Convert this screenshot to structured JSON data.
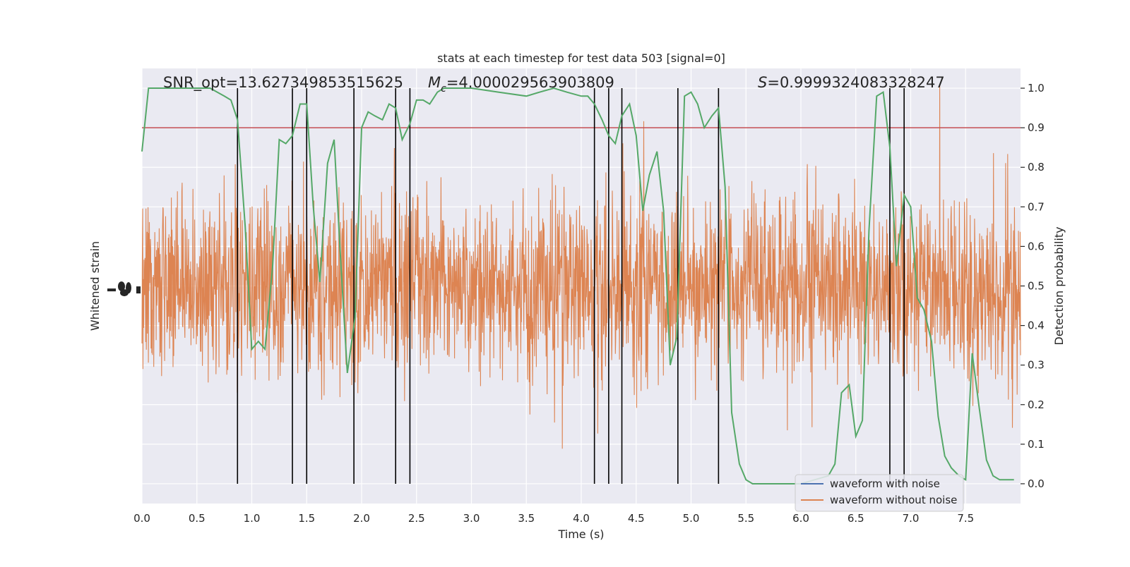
{
  "chart_data": {
    "type": "line",
    "title": "stats at each timestep for test data 503 [signal=0]",
    "xlabel": "Time (s)",
    "ylabel_left": "Whitened strain",
    "ylabel_right": "Detection probability",
    "xlim": [
      0.0,
      8.0
    ],
    "ylim_right": [
      -0.05,
      1.05
    ],
    "x_ticks": [
      "0.0",
      "0.5",
      "1.0",
      "1.5",
      "2.0",
      "2.5",
      "3.0",
      "3.5",
      "4.0",
      "4.5",
      "5.0",
      "5.5",
      "6.0",
      "6.5",
      "7.0",
      "7.5"
    ],
    "y_ticks_right": [
      "0.0",
      "0.1",
      "0.2",
      "0.3",
      "0.4",
      "0.5",
      "0.6",
      "0.7",
      "0.8",
      "0.9",
      "1.0"
    ],
    "annotations": {
      "snr": "SNR_opt=13.627349853515625",
      "mc_symbol": "M",
      "mc_sub": "c",
      "mc_value": "=4.000029563903809",
      "s_symbol": "S",
      "s_value": "=0.9999324083328247"
    },
    "threshold": 0.9,
    "vertical_lines": [
      0.87,
      1.37,
      1.5,
      1.93,
      2.31,
      2.44,
      4.12,
      4.25,
      4.37,
      4.88,
      5.25,
      6.81,
      6.94
    ],
    "series": [
      {
        "name": "waveform with noise",
        "color": "#4c72b0",
        "kind": "noise"
      },
      {
        "name": "waveform without noise",
        "color": "#dd8452",
        "kind": "noise"
      },
      {
        "color": "#55a868",
        "kind": "probability",
        "x": [
          0.0,
          0.06,
          0.12,
          0.25,
          0.37,
          0.5,
          0.62,
          0.75,
          0.81,
          0.87,
          0.94,
          1.0,
          1.06,
          1.12,
          1.19,
          1.25,
          1.31,
          1.37,
          1.44,
          1.5,
          1.56,
          1.62,
          1.69,
          1.75,
          1.81,
          1.87,
          1.94,
          2.0,
          2.06,
          2.12,
          2.19,
          2.25,
          2.31,
          2.37,
          2.44,
          2.5,
          2.56,
          2.62,
          2.69,
          2.75,
          3.0,
          3.25,
          3.5,
          3.62,
          3.75,
          3.87,
          4.0,
          4.06,
          4.12,
          4.19,
          4.25,
          4.31,
          4.37,
          4.44,
          4.5,
          4.56,
          4.62,
          4.69,
          4.75,
          4.81,
          4.87,
          4.94,
          5.0,
          5.06,
          5.12,
          5.19,
          5.25,
          5.31,
          5.37,
          5.44,
          5.5,
          5.56,
          5.62,
          5.75,
          6.0,
          6.25,
          6.31,
          6.37,
          6.44,
          6.5,
          6.56,
          6.62,
          6.69,
          6.75,
          6.81,
          6.87,
          6.94,
          7.0,
          7.06,
          7.12,
          7.19,
          7.25,
          7.31,
          7.37,
          7.44,
          7.5,
          7.56,
          7.62,
          7.69,
          7.75,
          7.81,
          7.87,
          7.94
        ],
        "y": [
          0.84,
          1.0,
          1.0,
          1.0,
          1.0,
          1.0,
          1.0,
          0.98,
          0.97,
          0.92,
          0.65,
          0.34,
          0.36,
          0.34,
          0.55,
          0.87,
          0.86,
          0.88,
          0.96,
          0.96,
          0.7,
          0.51,
          0.81,
          0.87,
          0.56,
          0.28,
          0.42,
          0.9,
          0.94,
          0.93,
          0.92,
          0.96,
          0.95,
          0.87,
          0.91,
          0.97,
          0.97,
          0.96,
          0.99,
          1.0,
          1.0,
          0.99,
          0.98,
          0.99,
          1.0,
          0.99,
          0.98,
          0.98,
          0.96,
          0.92,
          0.88,
          0.86,
          0.93,
          0.96,
          0.88,
          0.69,
          0.78,
          0.84,
          0.69,
          0.3,
          0.37,
          0.98,
          0.99,
          0.96,
          0.9,
          0.93,
          0.95,
          0.75,
          0.18,
          0.05,
          0.01,
          0.0,
          0.0,
          0.0,
          0.0,
          0.02,
          0.05,
          0.23,
          0.25,
          0.12,
          0.16,
          0.64,
          0.98,
          0.99,
          0.85,
          0.55,
          0.73,
          0.7,
          0.47,
          0.44,
          0.36,
          0.17,
          0.07,
          0.04,
          0.02,
          0.01,
          0.33,
          0.2,
          0.06,
          0.02,
          0.01,
          0.01,
          0.01
        ]
      }
    ],
    "legend": {
      "placement": "lower-right"
    },
    "grid": true
  }
}
